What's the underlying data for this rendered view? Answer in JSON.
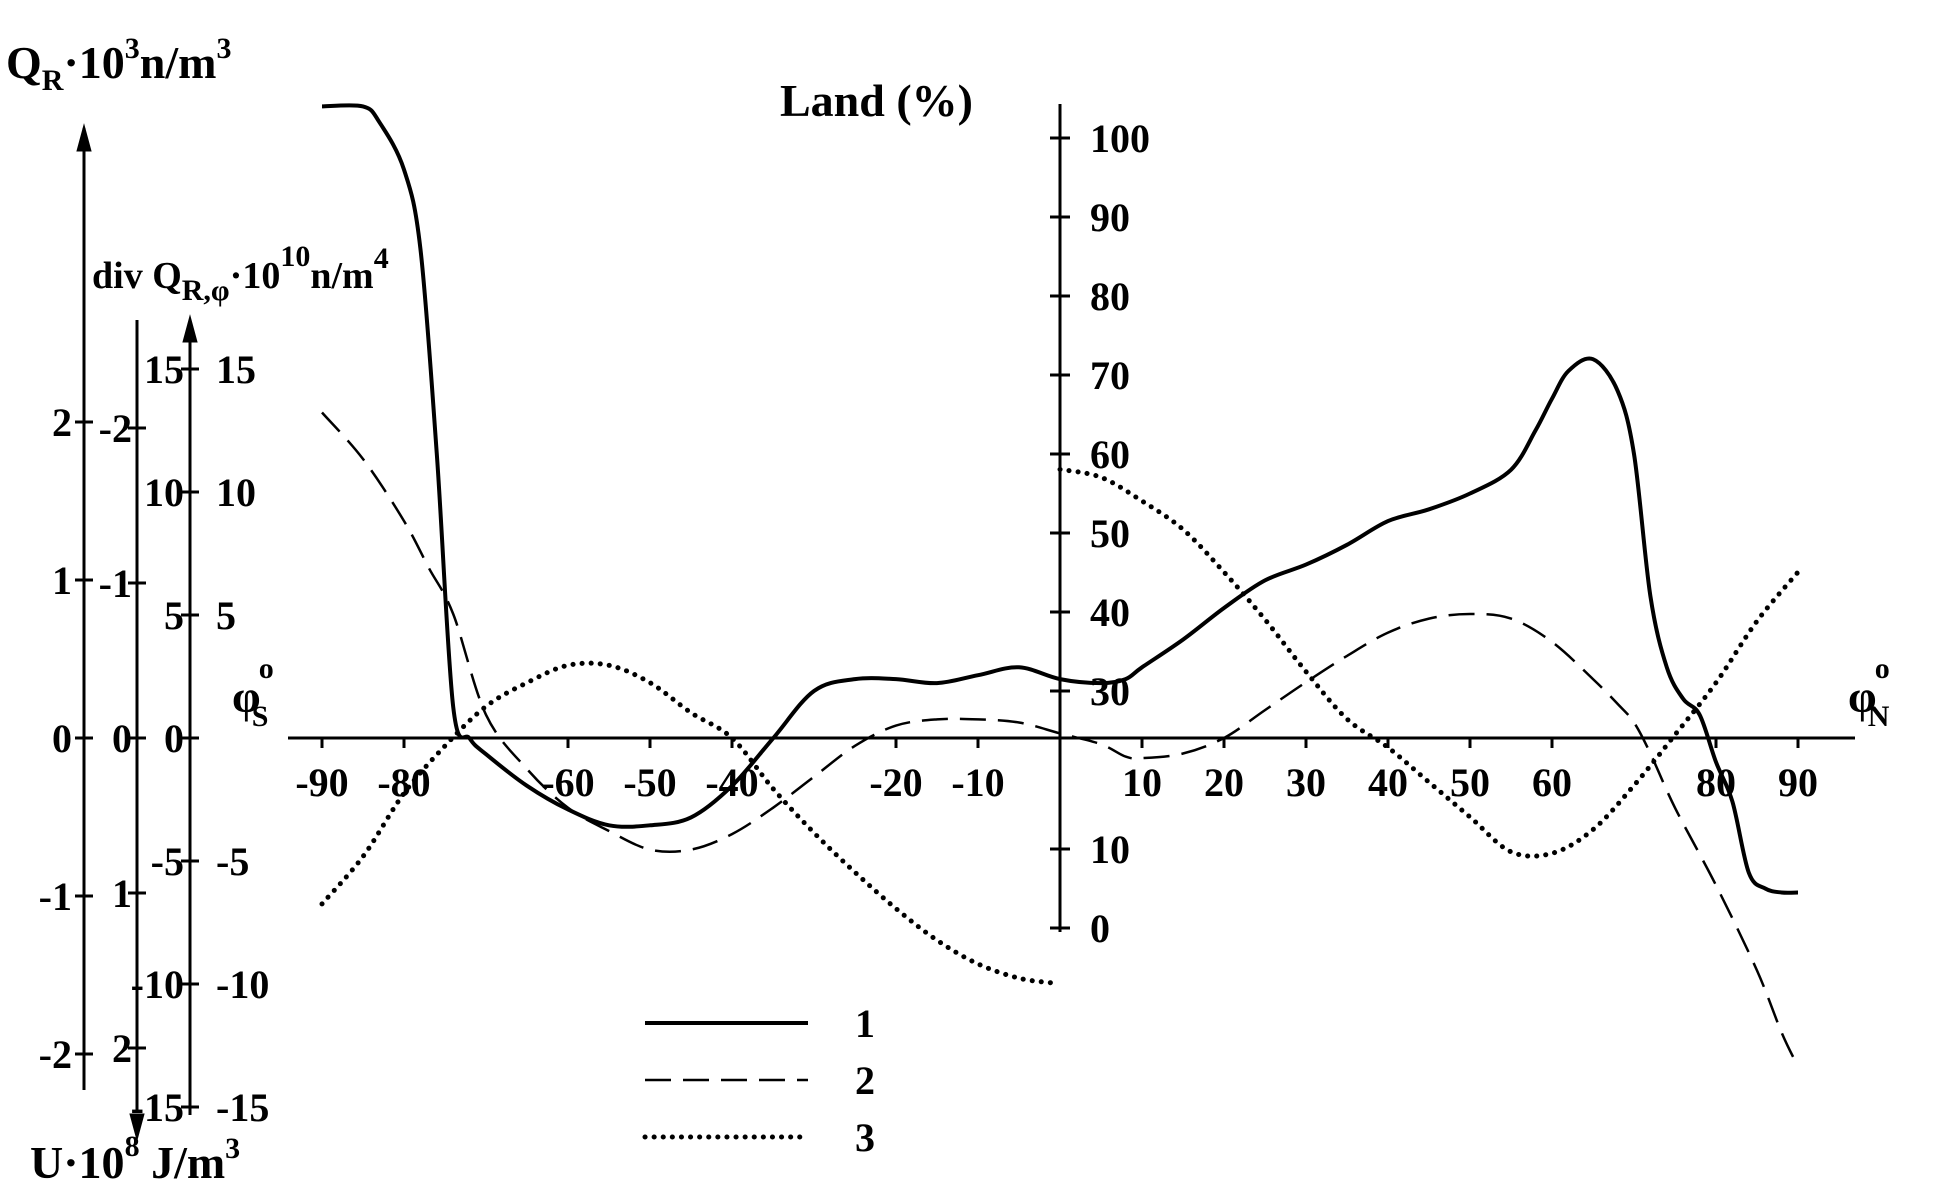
{
  "chart_data": {
    "type": "line",
    "xaxis": {
      "ticks_south": [
        "-90",
        "-80",
        "-60",
        "-50",
        "-40",
        "-20",
        "-10"
      ],
      "ticks_south_values": [
        -90,
        -80,
        -60,
        -50,
        -40,
        -20,
        -10
      ],
      "ticks_north": [
        "10",
        "20",
        "30",
        "40",
        "50",
        "60",
        "80",
        "90"
      ],
      "ticks_north_values": [
        10,
        20,
        30,
        40,
        50,
        60,
        80,
        90
      ],
      "label_south": "φ",
      "label_south_sub": "S",
      "label_south_sup": "o",
      "label_north": "φ",
      "label_north_sub": "N",
      "label_north_sup": "o",
      "range": [
        -93,
        93
      ]
    },
    "axis_qr": {
      "label_main": "Q",
      "label_sub": "R",
      "label_rest": "·10",
      "label_exp": "3",
      "label_unit": "n/m",
      "label_unit_exp": "3",
      "ticks": [
        "2",
        "1",
        "0",
        "-1",
        "-2"
      ],
      "tick_values": [
        2,
        1,
        0,
        -1,
        -2
      ]
    },
    "axis_u": {
      "label_main": "U·10",
      "label_exp": "8",
      "label_unit": " J/m",
      "label_unit_exp": "3",
      "ticks": [
        "-2",
        "-1",
        "0",
        "1",
        "2"
      ],
      "tick_values": [
        -2,
        -1,
        0,
        1,
        2
      ]
    },
    "axis_div": {
      "label_main": "div Q",
      "label_sub": "R,φ",
      "label_rest": "·10",
      "label_exp": "10",
      "label_unit": "n/m",
      "label_unit_exp": "4",
      "ticks": [
        "15",
        "10",
        "5",
        "0",
        "-5",
        "-10",
        "-15"
      ],
      "tick_values": [
        15,
        10,
        5,
        0,
        -5,
        -10,
        -15
      ]
    },
    "axis_land": {
      "label": "Land (%)",
      "ticks_upper": [
        "100",
        "90",
        "80",
        "70",
        "60",
        "50",
        "40",
        "30"
      ],
      "ticks_upper_values": [
        100,
        90,
        80,
        70,
        60,
        50,
        40,
        30
      ],
      "ticks_lower": [
        "10",
        "0"
      ],
      "ticks_lower_values": [
        10,
        0
      ]
    },
    "legend": [
      {
        "label": "1",
        "style": "solid"
      },
      {
        "label": "2",
        "style": "dashed"
      },
      {
        "label": "3",
        "style": "dotted"
      }
    ],
    "series": [
      {
        "legend": "1",
        "style": "solid",
        "units": "Land (%)",
        "x": [
          -90,
          -85,
          -83,
          -80,
          -78,
          -76,
          -74,
          -72,
          -70,
          -65,
          -60,
          -55,
          -50,
          -45,
          -40,
          -35,
          -30,
          -25,
          -20,
          -15,
          -10,
          -5,
          0,
          5,
          8,
          10,
          15,
          20,
          25,
          30,
          35,
          40,
          45,
          50,
          55,
          58,
          60,
          62,
          65,
          68,
          70,
          72,
          74,
          76,
          78,
          80,
          82,
          84,
          86,
          88,
          90
        ],
        "y": [
          104,
          104,
          102,
          96,
          86,
          60,
          28,
          24,
          22,
          18,
          15,
          13,
          13,
          14,
          18,
          24,
          30,
          31.5,
          31.5,
          31,
          32,
          33,
          31.5,
          31,
          31.5,
          33,
          36.5,
          40.5,
          44,
          46,
          48.5,
          51.5,
          53,
          55,
          58,
          63,
          67,
          70.5,
          72,
          68,
          60,
          42,
          33,
          29,
          27,
          21,
          16,
          7,
          5,
          4.5,
          4.5
        ]
      },
      {
        "legend": "2",
        "style": "dashed",
        "units": "U·10^8 J/m^3",
        "x": [
          -90,
          -85,
          -80,
          -77,
          -74,
          -70,
          -65,
          -60,
          -55,
          -50,
          -45,
          -40,
          -35,
          -30,
          -25,
          -20,
          -15,
          -10,
          -5,
          0,
          5,
          8,
          10,
          15,
          20,
          25,
          30,
          35,
          40,
          45,
          50,
          55,
          60,
          65,
          68,
          70,
          72,
          75,
          80,
          85,
          88,
          90
        ],
        "y": [
          -2.1,
          -1.8,
          -1.4,
          -1.1,
          -0.8,
          -0.15,
          0.2,
          0.45,
          0.6,
          0.72,
          0.72,
          0.62,
          0.45,
          0.25,
          0.05,
          -0.08,
          -0.12,
          -0.12,
          -0.1,
          -0.03,
          0.04,
          0.12,
          0.13,
          0.1,
          0.0,
          -0.18,
          -0.36,
          -0.53,
          -0.68,
          -0.77,
          -0.8,
          -0.77,
          -0.62,
          -0.38,
          -0.22,
          -0.1,
          0.1,
          0.45,
          0.95,
          1.5,
          1.9,
          2.12
        ]
      },
      {
        "legend": "3",
        "style": "dotted",
        "units": "Q_R·10^3 n/m^3",
        "x": [
          -90,
          -85,
          -80,
          -75,
          -70,
          -65,
          -60,
          -55,
          -50,
          -45,
          -40,
          -35,
          -30,
          -25,
          -20,
          -15,
          -10,
          -5,
          -1,
          0,
          5,
          10,
          15,
          20,
          25,
          30,
          35,
          40,
          45,
          50,
          55,
          60,
          65,
          70,
          75,
          80,
          85,
          90
        ],
        "y": [
          -1.05,
          -0.75,
          -0.35,
          -0.05,
          0.2,
          0.35,
          0.46,
          0.46,
          0.35,
          0.16,
          0,
          -0.32,
          -0.6,
          -0.85,
          -1.08,
          -1.28,
          -1.43,
          -1.52,
          -1.55,
          1.7,
          1.65,
          1.5,
          1.32,
          1.05,
          0.75,
          0.42,
          0.12,
          -0.06,
          -0.28,
          -0.5,
          -0.72,
          -0.73,
          -0.58,
          -0.3,
          0.02,
          0.35,
          0.74,
          1.05
        ]
      }
    ]
  }
}
